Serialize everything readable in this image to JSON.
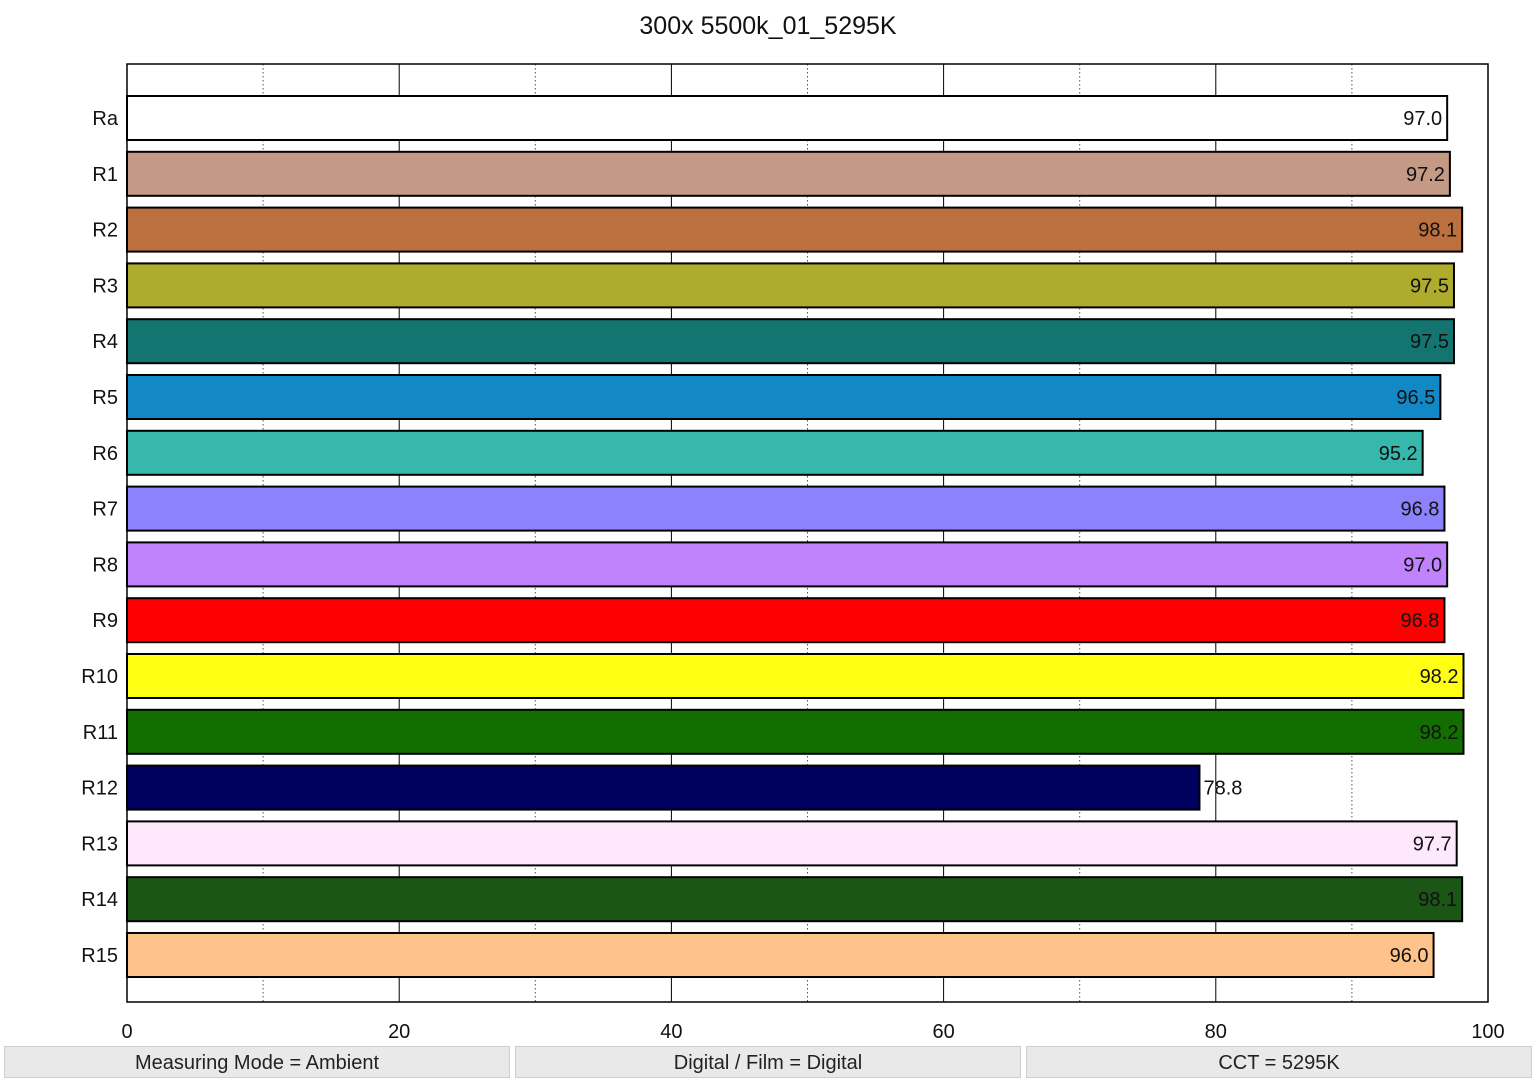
{
  "chart_data": {
    "type": "bar",
    "orientation": "horizontal",
    "title": "300x 5500k_01_5295K",
    "xlabel": "",
    "ylabel": "",
    "xlim": [
      0,
      100
    ],
    "x_ticks": [
      0,
      20,
      40,
      60,
      80,
      100
    ],
    "minor_grid": [
      10,
      30,
      50,
      70,
      90
    ],
    "grid": true,
    "categories": [
      "Ra",
      "R1",
      "R2",
      "R3",
      "R4",
      "R5",
      "R6",
      "R7",
      "R8",
      "R9",
      "R10",
      "R11",
      "R12",
      "R13",
      "R14",
      "R15"
    ],
    "values": [
      97.0,
      97.2,
      98.1,
      97.5,
      97.5,
      96.5,
      95.2,
      96.8,
      97.0,
      96.8,
      98.2,
      98.2,
      78.8,
      97.7,
      98.1,
      96.0
    ],
    "value_labels": [
      "97.0",
      "97.2",
      "98.1",
      "97.5",
      "97.5",
      "96.5",
      "95.2",
      "96.8",
      "97.0",
      "96.8",
      "98.2",
      "98.2",
      "78.8",
      "97.7",
      "98.1",
      "96.0"
    ],
    "colors": [
      "#ffffff",
      "#c49a86",
      "#bc703f",
      "#afab2c",
      "#137470",
      "#1388c6",
      "#36b8ad",
      "#8d82fe",
      "#c082fd",
      "#ff0000",
      "#ffff14",
      "#136e00",
      "#00005e",
      "#fde9fb",
      "#1b5616",
      "#fec38b"
    ]
  },
  "status_bar": {
    "measuring_mode": "Measuring Mode = Ambient",
    "digital_film": "Digital / Film = Digital",
    "cct": "CCT = 5295K"
  }
}
